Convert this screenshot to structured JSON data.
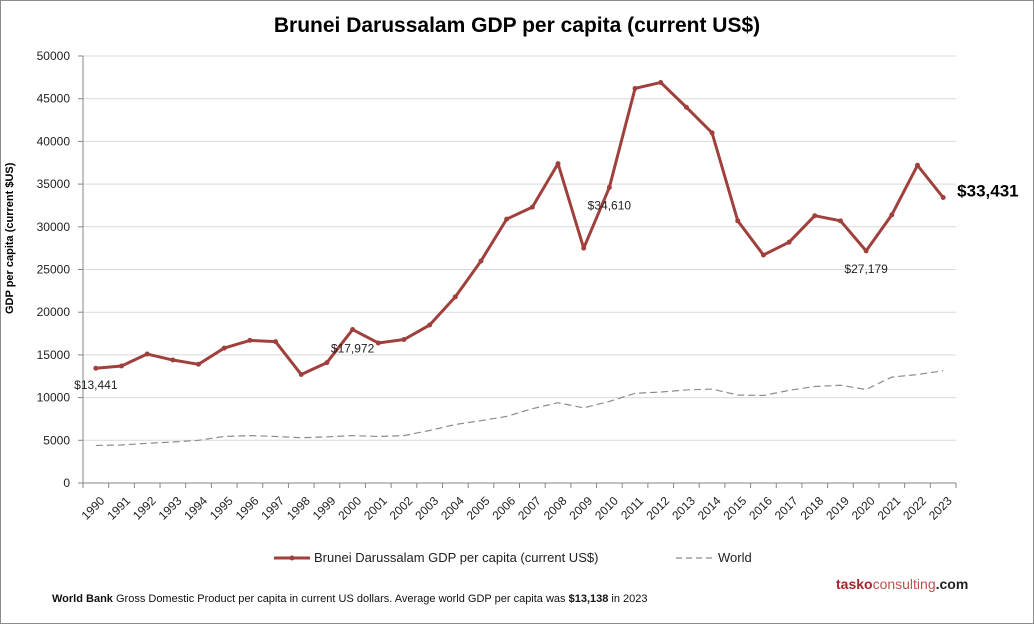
{
  "chart_data": {
    "type": "line",
    "title": "Brunei Darussalam GDP per capita (current US$)",
    "xlabel": "",
    "ylabel": "GDP per capita (current $US)",
    "ylim": [
      0,
      50000
    ],
    "yticks": [
      0,
      5000,
      10000,
      15000,
      20000,
      25000,
      30000,
      35000,
      40000,
      45000,
      50000
    ],
    "grid": true,
    "legend_position": "bottom",
    "x": [
      "1990",
      "1991",
      "1992",
      "1993",
      "1994",
      "1995",
      "1996",
      "1997",
      "1998",
      "1999",
      "2000",
      "2001",
      "2002",
      "2003",
      "2004",
      "2005",
      "2006",
      "2007",
      "2008",
      "2009",
      "2010",
      "2011",
      "2012",
      "2013",
      "2014",
      "2015",
      "2016",
      "2017",
      "2018",
      "2019",
      "2020",
      "2021",
      "2022",
      "2023"
    ],
    "series": [
      {
        "name": "Brunei Darussalam GDP per capita (current US$)",
        "color": "#a0403c",
        "style": "solid-markers",
        "values": [
          13441,
          13700,
          15100,
          14400,
          13900,
          15800,
          16700,
          16550,
          12700,
          14100,
          17972,
          16400,
          16800,
          18500,
          21800,
          26000,
          30900,
          32300,
          37400,
          27500,
          34610,
          46200,
          46900,
          44000,
          41000,
          30700,
          26700,
          28200,
          31300,
          30700,
          27179,
          31400,
          37200,
          33431
        ]
      },
      {
        "name": "World",
        "color": "#8c8c8c",
        "style": "dashed",
        "values": [
          4400,
          4450,
          4650,
          4800,
          5000,
          5450,
          5550,
          5450,
          5300,
          5400,
          5550,
          5450,
          5550,
          6150,
          6850,
          7300,
          7800,
          8700,
          9400,
          8800,
          9550,
          10500,
          10650,
          10900,
          11000,
          10300,
          10250,
          10850,
          11300,
          11450,
          10950,
          12400,
          12700,
          13138
        ]
      }
    ],
    "annotations": [
      {
        "x": "1990",
        "label": "$13,441",
        "bold": false
      },
      {
        "x": "2000",
        "label": "$17,972",
        "bold": false
      },
      {
        "x": "2010",
        "label": "$34,610",
        "bold": false
      },
      {
        "x": "2020",
        "label": "$27,179",
        "bold": false
      },
      {
        "x": "2023",
        "label": "$33,431",
        "bold": true
      }
    ]
  },
  "legend": {
    "brunei": "Brunei Darussalam GDP per capita (current US$)",
    "world": "World"
  },
  "footer": {
    "source": "World Bank",
    "text": " Gross Domestic Product per capita in current US dollars.  Average world GDP per capita was ",
    "value": "$13,138",
    "tail": " in 2023"
  },
  "brand": {
    "part1": "tasko",
    "part2": "consulting",
    "part3": ".com"
  }
}
